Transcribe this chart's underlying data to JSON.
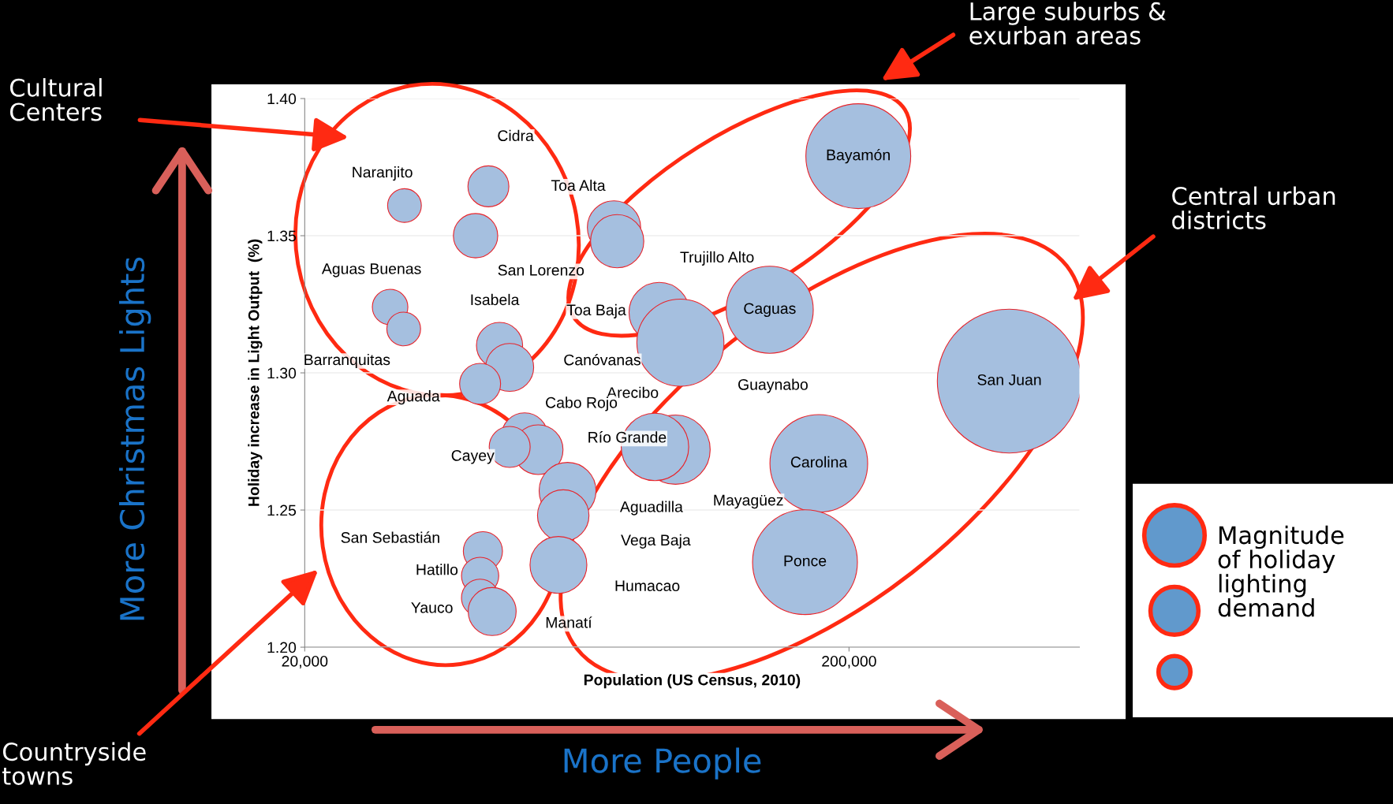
{
  "chart_data": {
    "type": "bubble",
    "xlabel": "Population (US Census, 2010)",
    "ylabel": "Holiday increase in Light Output  (%)",
    "log": "x",
    "grid": "y",
    "xlim": [
      20000,
      530000
    ],
    "xticks": [
      {
        "value": 20000,
        "label": "20,000"
      },
      {
        "value": 200000,
        "label": "200,000"
      }
    ],
    "ylim": [
      1.2,
      1.4
    ],
    "yticks": [
      {
        "value": 1.2,
        "label": "1.20"
      },
      {
        "value": 1.25,
        "label": "1.25"
      },
      {
        "value": 1.3,
        "label": "1.30"
      },
      {
        "value": 1.35,
        "label": "1.35"
      },
      {
        "value": 1.4,
        "label": "1.40"
      }
    ],
    "series": [
      {
        "color": "#a5bfdf",
        "x": [
          30500,
          43500,
          41200,
          74000,
          75000,
          28700,
          30400,
          45600,
          47600,
          42000,
          89600,
          98000,
          143000,
          208000,
          394000,
          176000,
          166000,
          96000,
          88000,
          50700,
          53700,
          47600,
          60800,
          59700,
          58500,
          42500,
          42000,
          42000,
          44200
        ],
        "values": [
          1.361,
          1.368,
          1.35,
          1.353,
          1.348,
          1.324,
          1.316,
          1.31,
          1.302,
          1.296,
          1.322,
          1.311,
          1.323,
          1.379,
          1.297,
          1.267,
          1.231,
          1.272,
          1.273,
          1.277,
          1.272,
          1.273,
          1.257,
          1.248,
          1.23,
          1.235,
          1.226,
          1.218,
          1.213
        ],
        "sizes": [
          0.055,
          0.081,
          0.095,
          0.137,
          0.137,
          0.061,
          0.055,
          0.103,
          0.111,
          0.081,
          0.176,
          0.366,
          0.366,
          0.531,
          1,
          0.461,
          0.531,
          0.232,
          0.22,
          0.103,
          0.119,
          0.081,
          0.156,
          0.128,
          0.156,
          0.074,
          0.067,
          0.067,
          0.111
        ]
      }
    ],
    "annotations": [
      "Naranjito",
      "Cidra",
      "San Lorenzo",
      "Toa Alta",
      "Trujillo Alto",
      "Aguas Buenas",
      "Barranquitas",
      "Isabela",
      "Canóvanas",
      "Aguada",
      "Toa Baja",
      "Guaynabo",
      "Caguas",
      "Bayamón",
      "San Juan",
      "Carolina",
      "Ponce",
      "Mayagüez",
      "Arecibo",
      "Cabo Rojo",
      "Río Grande",
      "Cayey",
      "Aguadilla",
      "Vega Baja",
      "Humacao",
      "San Sebastián",
      "Hatillo",
      "Yauco",
      "Manatí",
      "Cultural\nCenters",
      "Large suburbs &\nexurban areas",
      "Central urban\ndistricts",
      "Countryside\ntowns",
      "More Christmas Lights",
      "More People",
      "Magnitude\nof holiday\nlighting\ndemand"
    ]
  }
}
